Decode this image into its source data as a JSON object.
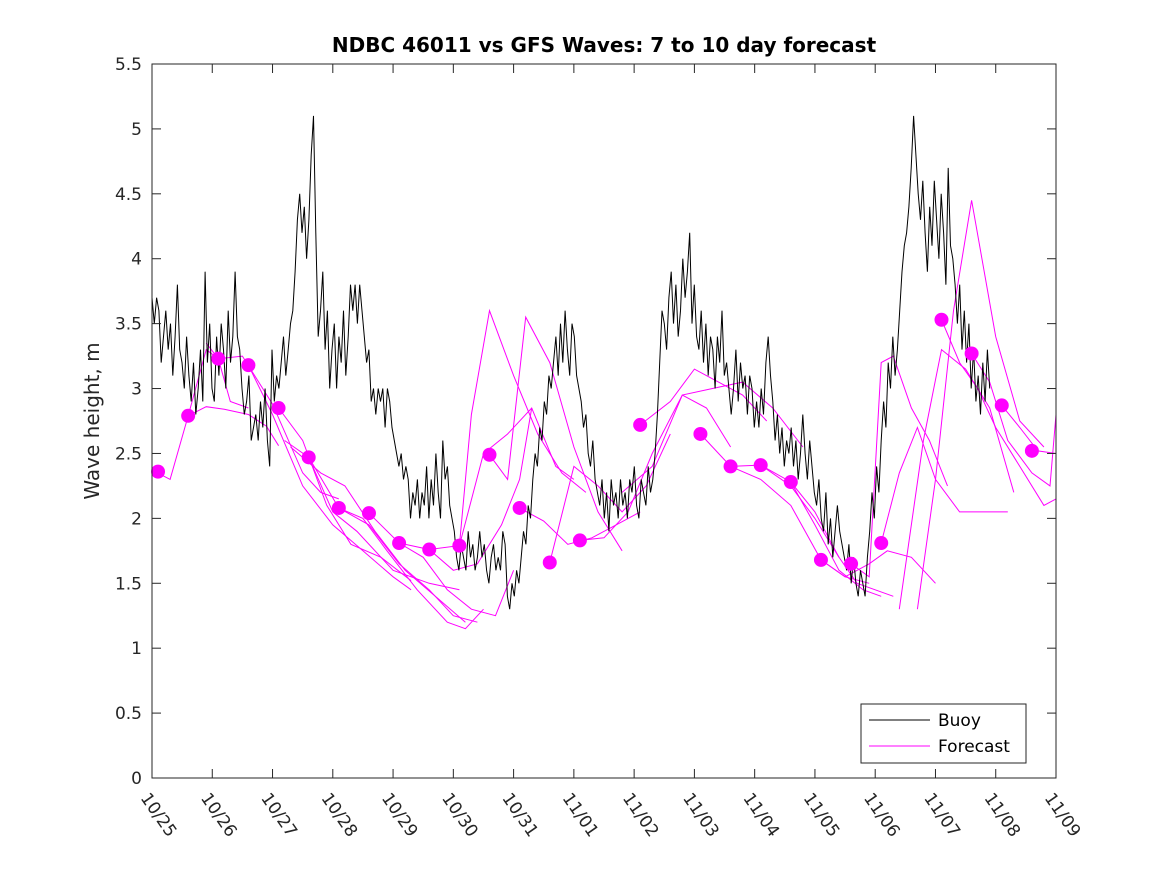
{
  "chart_data": {
    "type": "line",
    "title": "NDBC 46011 vs GFS Waves: 7 to 10 day forecast",
    "xlabel": "",
    "ylabel": "Wave height, m",
    "xlim_days": [
      0,
      15
    ],
    "ylim": [
      0,
      5.5
    ],
    "grid": false,
    "legend_position": "bottom-right",
    "x_tick_labels": [
      "10/25",
      "10/26",
      "10/27",
      "10/28",
      "10/29",
      "10/30",
      "10/31",
      "11/01",
      "11/02",
      "11/03",
      "11/04",
      "11/05",
      "11/06",
      "11/07",
      "11/08",
      "11/09"
    ],
    "y_ticks": [
      0,
      0.5,
      1,
      1.5,
      2,
      2.5,
      3,
      3.5,
      4,
      4.5,
      5,
      5.5
    ],
    "y_tick_labels": [
      "0",
      "0.5",
      "1",
      "1.5",
      "2",
      "2.5",
      "3",
      "3.5",
      "4",
      "4.5",
      "5",
      "5.5"
    ],
    "legend": [
      {
        "label": "Buoy",
        "color": "#000000"
      },
      {
        "label": "Forecast",
        "color": "#ff00ff"
      }
    ],
    "colors": {
      "buoy": "#000000",
      "forecast": "#ff00ff",
      "axis": "#262626"
    },
    "series": [
      {
        "name": "Buoy",
        "x_start_day": 0,
        "x_step_day": 0.0417,
        "values": [
          3.7,
          3.5,
          3.7,
          3.6,
          3.2,
          3.4,
          3.6,
          3.3,
          3.5,
          3.1,
          3.4,
          3.8,
          3.3,
          3.2,
          3.0,
          3.4,
          3.1,
          2.9,
          3.2,
          2.8,
          3.0,
          3.3,
          2.9,
          3.9,
          3.2,
          3.5,
          3.0,
          2.9,
          3.4,
          3.1,
          3.5,
          3.3,
          3.0,
          3.6,
          3.2,
          3.4,
          3.9,
          3.4,
          3.3,
          3.0,
          2.8,
          2.9,
          3.1,
          2.6,
          2.7,
          2.8,
          2.6,
          2.9,
          2.7,
          3.0,
          2.6,
          2.4,
          3.3,
          2.9,
          3.1,
          3.0,
          3.2,
          3.4,
          3.1,
          3.3,
          3.5,
          3.6,
          3.9,
          4.3,
          4.5,
          4.2,
          4.4,
          4.0,
          4.3,
          4.8,
          5.1,
          4.2,
          3.4,
          3.6,
          3.9,
          3.3,
          3.6,
          3.0,
          3.3,
          3.5,
          3.0,
          3.4,
          3.2,
          3.6,
          3.1,
          3.4,
          3.8,
          3.6,
          3.8,
          3.5,
          3.8,
          3.6,
          3.4,
          3.2,
          3.3,
          2.9,
          3.0,
          2.8,
          3.0,
          2.9,
          3.0,
          2.7,
          3.0,
          2.9,
          2.7,
          2.6,
          2.5,
          2.4,
          2.5,
          2.3,
          2.4,
          2.3,
          2.0,
          2.2,
          2.1,
          2.3,
          2.0,
          2.2,
          2.1,
          2.4,
          2.0,
          2.3,
          2.1,
          2.5,
          2.2,
          2.0,
          2.6,
          2.3,
          2.4,
          2.1,
          2.0,
          1.9,
          1.7,
          1.6,
          1.8,
          1.7,
          1.6,
          1.9,
          1.7,
          1.8,
          1.6,
          1.7,
          1.9,
          1.7,
          1.8,
          1.6,
          1.5,
          1.7,
          1.8,
          1.6,
          1.7,
          1.6,
          1.9,
          1.8,
          1.4,
          1.3,
          1.5,
          1.4,
          1.6,
          1.5,
          1.7,
          1.9,
          1.8,
          2.1,
          2.0,
          2.3,
          2.5,
          2.4,
          2.7,
          2.6,
          2.9,
          2.8,
          3.1,
          3.0,
          3.2,
          3.4,
          3.1,
          3.5,
          3.2,
          3.6,
          3.3,
          3.1,
          3.5,
          3.4,
          3.1,
          3.0,
          2.9,
          2.7,
          2.8,
          2.5,
          2.4,
          2.6,
          2.3,
          2.2,
          2.1,
          2.3,
          2.0,
          2.2,
          1.9,
          2.3,
          2.1,
          2.2,
          2.0,
          2.3,
          2.1,
          2.2,
          2.0,
          2.3,
          2.2,
          2.4,
          2.1,
          2.0,
          2.3,
          2.2,
          2.1,
          2.4,
          2.2,
          2.3,
          2.5,
          2.8,
          3.2,
          3.6,
          3.5,
          3.3,
          3.7,
          3.9,
          3.5,
          3.8,
          3.4,
          3.6,
          4.0,
          3.7,
          3.9,
          4.2,
          3.5,
          3.8,
          3.4,
          3.3,
          3.6,
          3.2,
          3.5,
          3.1,
          3.4,
          3.3,
          3.0,
          3.4,
          3.2,
          3.6,
          3.1,
          3.2,
          3.0,
          2.8,
          3.0,
          3.3,
          2.9,
          3.2,
          3.0,
          3.1,
          2.8,
          3.1,
          3.0,
          2.7,
          2.9,
          2.7,
          3.0,
          2.8,
          3.2,
          3.4,
          3.1,
          2.9,
          2.6,
          2.8,
          2.5,
          2.7,
          2.4,
          2.6,
          2.5,
          2.7,
          2.4,
          2.6,
          2.3,
          2.5,
          2.8,
          2.5,
          2.3,
          2.6,
          2.4,
          2.2,
          2.1,
          2.3,
          2.0,
          1.9,
          2.2,
          1.8,
          2.0,
          1.7,
          1.9,
          2.1,
          1.9,
          1.8,
          1.7,
          1.6,
          1.8,
          1.5,
          1.7,
          1.5,
          1.4,
          1.6,
          1.5,
          1.4,
          1.7,
          1.9,
          2.2,
          2.0,
          2.4,
          2.2,
          2.6,
          2.9,
          2.7,
          3.2,
          3.0,
          3.4,
          3.1,
          3.3,
          3.6,
          3.9,
          4.1,
          4.2,
          4.4,
          4.7,
          5.1,
          4.8,
          4.5,
          4.3,
          4.6,
          4.2,
          3.9,
          4.4,
          4.1,
          4.6,
          4.3,
          4.0,
          4.5,
          4.2,
          3.8,
          4.7,
          4.1,
          4.0,
          3.8,
          3.5,
          3.8,
          3.3,
          3.6,
          3.2,
          3.5,
          3.0,
          3.3,
          2.9,
          3.1,
          2.8,
          3.2,
          2.9,
          3.3,
          3.0
        ]
      }
    ],
    "forecasts": [
      {
        "x": [
          0.05,
          0.3,
          0.6,
          0.9,
          1.1,
          1.3,
          1.6
        ],
        "values": [
          2.36,
          2.3,
          2.79,
          3.3,
          3.23,
          2.9,
          2.85
        ]
      },
      {
        "x": [
          0.6,
          0.9,
          1.2,
          1.6,
          1.9,
          2.1
        ],
        "values": [
          2.79,
          2.86,
          2.84,
          2.8,
          2.71,
          2.56
        ]
      },
      {
        "x": [
          0.9,
          1.1,
          1.5,
          2.0,
          2.5,
          2.8,
          3.1
        ],
        "values": [
          3.35,
          3.23,
          3.25,
          2.88,
          2.35,
          2.2,
          2.15
        ]
      },
      {
        "x": [
          1.6,
          2.0,
          2.5,
          3.0,
          3.5,
          4.0,
          4.3
        ],
        "values": [
          3.18,
          2.8,
          2.25,
          1.95,
          1.75,
          1.55,
          1.45
        ]
      },
      {
        "x": [
          2.1,
          2.5,
          2.9,
          3.3,
          3.8,
          4.3
        ],
        "values": [
          2.85,
          2.6,
          2.1,
          1.8,
          1.7,
          1.52
        ]
      },
      {
        "x": [
          2.2,
          2.6,
          3.0,
          3.4,
          4.0,
          4.6,
          5.1
        ],
        "values": [
          2.6,
          2.47,
          2.05,
          1.9,
          1.6,
          1.5,
          1.45
        ]
      },
      {
        "x": [
          2.3,
          2.8,
          3.2,
          3.7,
          4.2,
          4.7,
          5.2
        ],
        "values": [
          2.55,
          2.35,
          2.25,
          1.9,
          1.6,
          1.4,
          1.2
        ]
      },
      {
        "x": [
          2.6,
          3.1,
          3.6,
          4.1,
          4.6,
          5.0,
          5.4
        ],
        "values": [
          2.47,
          2.08,
          1.95,
          1.65,
          1.45,
          1.25,
          1.2
        ]
      },
      {
        "x": [
          3.1,
          3.5,
          3.9,
          4.4,
          4.9,
          5.2,
          5.5
        ],
        "values": [
          2.08,
          2.0,
          1.75,
          1.45,
          1.2,
          1.15,
          1.3
        ]
      },
      {
        "x": [
          3.6,
          4.1,
          4.5,
          4.9,
          5.3,
          5.7,
          6.0
        ],
        "values": [
          2.04,
          1.81,
          1.7,
          1.45,
          1.3,
          1.25,
          1.6
        ]
      },
      {
        "x": [
          4.1,
          4.6,
          5.0,
          5.4,
          5.8,
          6.1,
          6.3
        ],
        "values": [
          1.81,
          1.76,
          1.6,
          1.65,
          1.95,
          2.3,
          2.85
        ]
      },
      {
        "x": [
          4.6,
          5.1,
          5.5,
          5.9,
          6.3,
          6.7,
          7.0
        ],
        "values": [
          1.76,
          1.79,
          2.5,
          2.65,
          2.85,
          2.4,
          2.3
        ]
      },
      {
        "x": [
          5.1,
          5.3,
          5.6,
          6.0,
          6.4,
          6.8,
          7.2
        ],
        "values": [
          1.79,
          2.8,
          3.6,
          3.1,
          2.65,
          2.35,
          2.2
        ]
      },
      {
        "x": [
          5.6,
          5.9,
          6.2,
          6.6,
          7.0,
          7.4,
          7.8
        ],
        "values": [
          2.49,
          2.3,
          3.55,
          3.2,
          2.55,
          2.05,
          1.75
        ]
      },
      {
        "x": [
          6.1,
          6.5,
          6.9,
          7.3,
          7.7,
          8.1
        ],
        "values": [
          2.08,
          1.98,
          1.8,
          1.85,
          1.95,
          2.05
        ]
      },
      {
        "x": [
          6.6,
          7.0,
          7.4,
          7.8,
          8.2,
          8.6
        ],
        "values": [
          1.66,
          2.4,
          2.25,
          2.05,
          2.25,
          2.65
        ]
      },
      {
        "x": [
          7.1,
          7.5,
          7.9,
          8.3,
          8.8,
          9.2,
          9.6
        ],
        "values": [
          1.83,
          1.85,
          2.05,
          2.5,
          2.95,
          2.85,
          2.55
        ]
      },
      {
        "x": [
          8.1,
          8.6,
          9.0,
          9.4,
          9.8,
          10.2
        ],
        "values": [
          2.72,
          2.9,
          3.15,
          3.05,
          2.95,
          2.75
        ]
      },
      {
        "x": [
          7.8,
          8.3,
          8.8,
          9.3,
          9.8,
          10.3,
          10.8
        ],
        "values": [
          2.2,
          2.4,
          2.95,
          3.0,
          3.05,
          2.85,
          2.55
        ]
      },
      {
        "x": [
          9.1,
          9.6,
          10.1,
          10.6,
          11.0,
          11.4
        ],
        "values": [
          2.65,
          2.4,
          2.41,
          2.25,
          2.0,
          1.7
        ]
      },
      {
        "x": [
          9.6,
          10.1,
          10.6,
          11.1,
          11.5,
          11.9
        ],
        "values": [
          2.4,
          2.3,
          2.1,
          1.68,
          1.55,
          1.5
        ]
      },
      {
        "x": [
          10.1,
          10.6,
          11.0,
          11.4,
          11.8,
          12.1
        ],
        "values": [
          2.41,
          2.28,
          1.95,
          1.6,
          1.45,
          1.4
        ]
      },
      {
        "x": [
          10.6,
          11.0,
          11.4,
          11.7,
          12.0,
          12.3
        ],
        "values": [
          2.28,
          2.05,
          1.7,
          1.5,
          1.45,
          1.4
        ]
      },
      {
        "x": [
          11.1,
          11.5,
          11.9,
          12.2,
          12.6,
          13.0
        ],
        "values": [
          1.68,
          1.55,
          1.65,
          1.75,
          1.7,
          1.5
        ]
      },
      {
        "x": [
          11.6,
          11.9,
          12.1,
          12.3,
          12.6,
          12.9,
          13.2
        ],
        "values": [
          1.65,
          1.55,
          3.2,
          3.25,
          2.85,
          2.6,
          2.25
        ]
      },
      {
        "x": [
          12.1,
          12.4,
          12.7,
          13.0,
          13.4,
          13.8,
          14.2
        ],
        "values": [
          1.81,
          2.35,
          2.7,
          2.3,
          2.05,
          2.05,
          2.05
        ]
      },
      {
        "x": [
          12.4,
          12.8,
          13.1,
          13.5,
          13.9,
          14.3
        ],
        "values": [
          1.3,
          2.6,
          3.3,
          3.15,
          2.85,
          2.2
        ]
      },
      {
        "x": [
          12.7,
          13.0,
          13.3,
          13.6,
          14.0,
          14.4,
          14.8
        ],
        "values": [
          1.3,
          2.3,
          3.6,
          4.45,
          3.4,
          2.75,
          2.55
        ]
      },
      {
        "x": [
          13.1,
          13.4,
          13.7,
          14.0,
          14.4,
          14.8,
          15.0
        ],
        "values": [
          3.53,
          3.2,
          3.0,
          2.7,
          2.4,
          2.1,
          2.15
        ]
      },
      {
        "x": [
          13.6,
          13.9,
          14.2,
          14.6,
          14.9,
          15.0
        ],
        "values": [
          3.27,
          3.05,
          2.6,
          2.35,
          2.25,
          2.8
        ]
      },
      {
        "x": [
          14.1,
          14.4,
          14.7,
          15.0
        ],
        "values": [
          2.87,
          2.7,
          2.52,
          2.5
        ]
      }
    ],
    "markers": [
      {
        "x": 0.1,
        "y": 2.36
      },
      {
        "x": 0.6,
        "y": 2.79
      },
      {
        "x": 1.1,
        "y": 3.23
      },
      {
        "x": 1.6,
        "y": 3.18
      },
      {
        "x": 2.1,
        "y": 2.85
      },
      {
        "x": 2.6,
        "y": 2.47
      },
      {
        "x": 3.1,
        "y": 2.08
      },
      {
        "x": 3.6,
        "y": 2.04
      },
      {
        "x": 4.1,
        "y": 1.81
      },
      {
        "x": 4.6,
        "y": 1.76
      },
      {
        "x": 5.1,
        "y": 1.79
      },
      {
        "x": 5.6,
        "y": 2.49
      },
      {
        "x": 6.1,
        "y": 2.08
      },
      {
        "x": 6.6,
        "y": 1.66
      },
      {
        "x": 7.1,
        "y": 1.83
      },
      {
        "x": 8.1,
        "y": 2.72
      },
      {
        "x": 9.1,
        "y": 2.65
      },
      {
        "x": 9.6,
        "y": 2.4
      },
      {
        "x": 10.1,
        "y": 2.41
      },
      {
        "x": 10.6,
        "y": 2.28
      },
      {
        "x": 11.1,
        "y": 1.68
      },
      {
        "x": 11.6,
        "y": 1.65
      },
      {
        "x": 12.1,
        "y": 1.81
      },
      {
        "x": 13.1,
        "y": 3.53
      },
      {
        "x": 13.6,
        "y": 3.27
      },
      {
        "x": 14.1,
        "y": 2.87
      },
      {
        "x": 14.6,
        "y": 2.52
      }
    ]
  }
}
